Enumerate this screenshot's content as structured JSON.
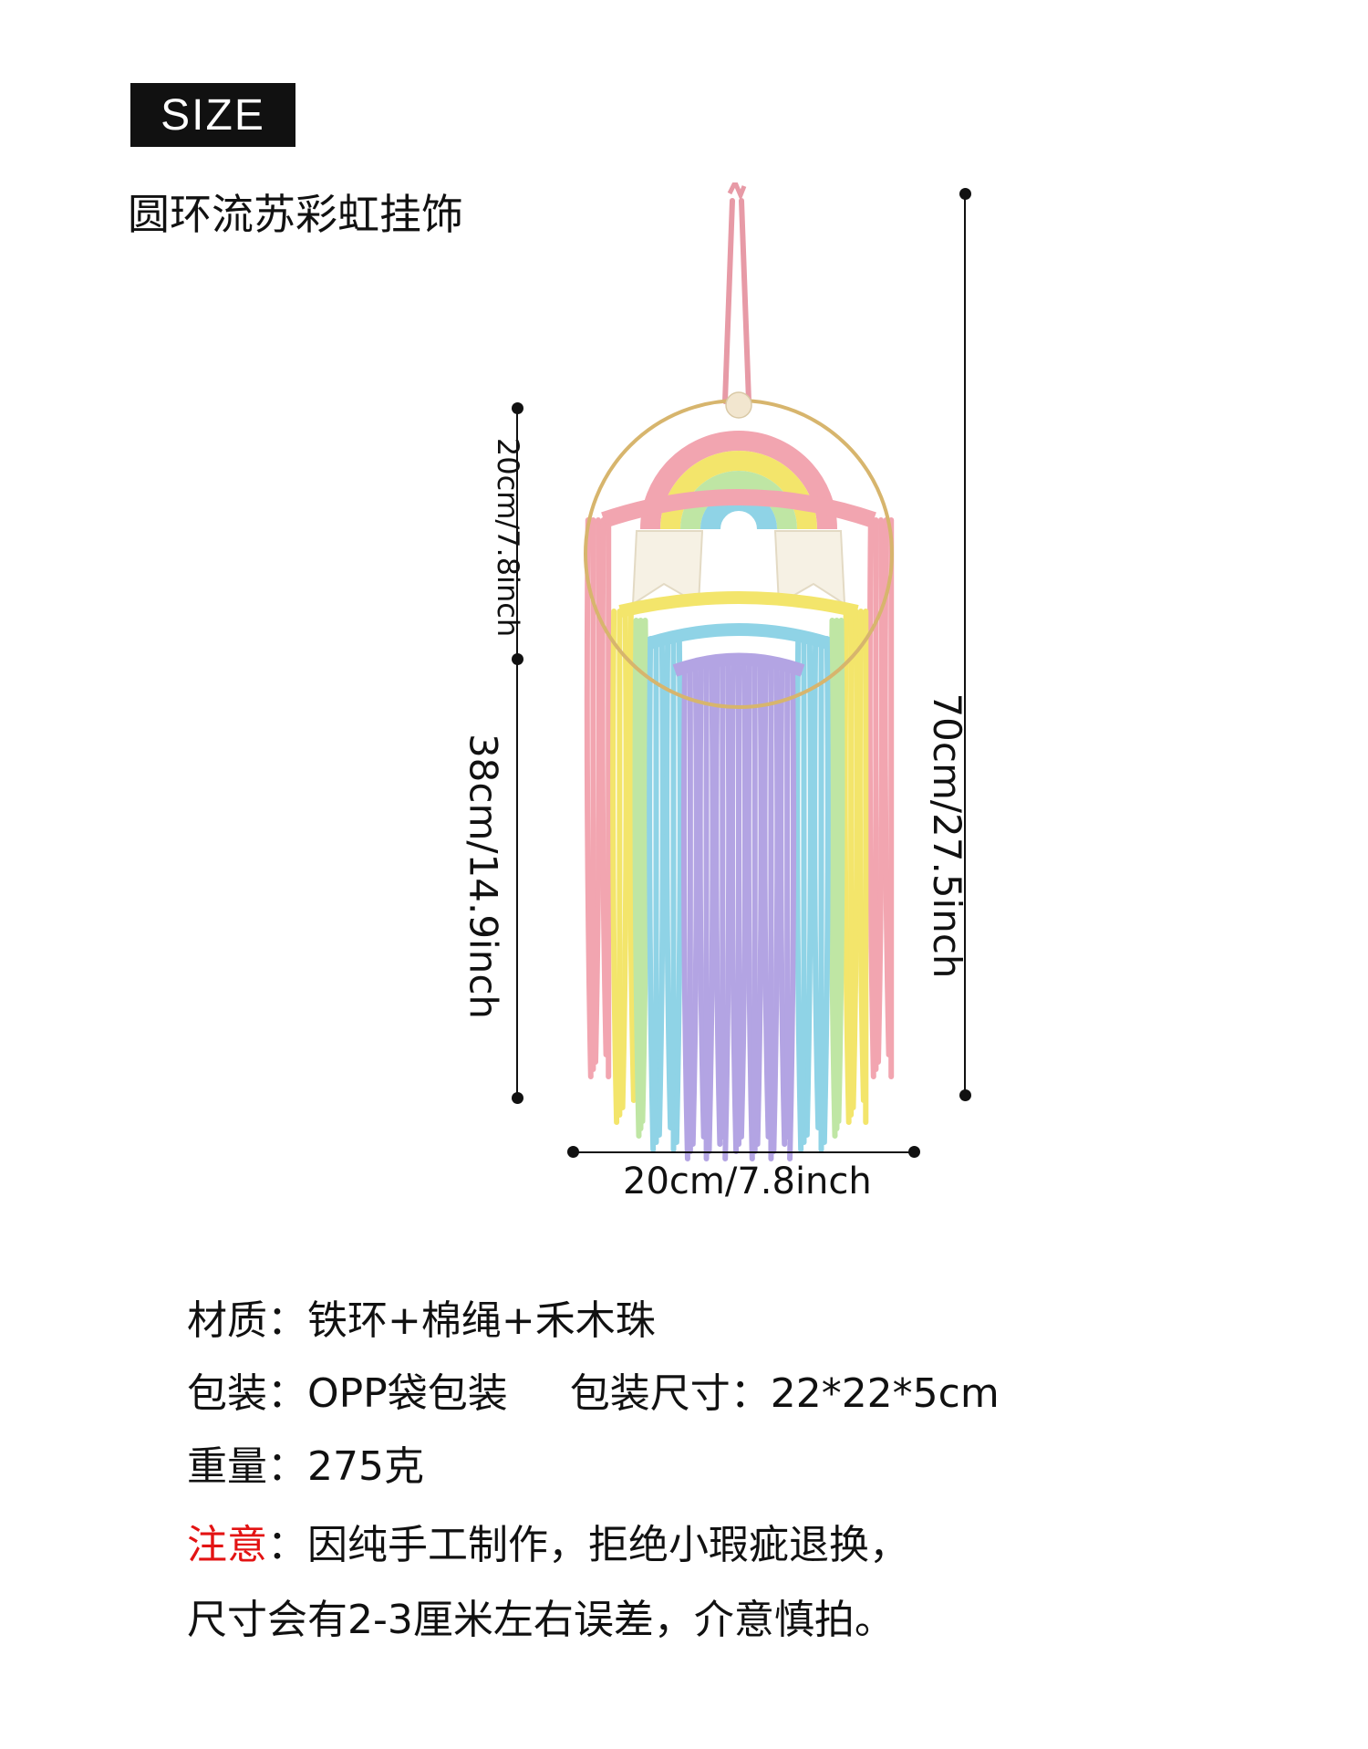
{
  "badge": {
    "label": "SIZE"
  },
  "title": "圆环流苏彩虹挂饰",
  "dimensions": {
    "ring_height": "20cm/7.8inch",
    "tassel_length": "38cm/14.9inch",
    "total_length": "70cm/27.5inch",
    "width": "20cm/7.8inch"
  },
  "specs": {
    "material_label": "材质：",
    "material_value": "铁环+棉绳+禾木珠",
    "packaging_label": "包装：",
    "packaging_value": "OPP袋包装",
    "package_size_label": "包装尺寸：",
    "package_size_value": "22*22*5cm",
    "weight_label": "重量：",
    "weight_value": "275克",
    "note_label": "注意",
    "note_line1": "：因纯手工制作，拒绝小瑕疵退换，",
    "note_line2": "尺寸会有2-3厘米左右误差，介意慎拍。"
  },
  "colors": {
    "ring": "#d7b56d",
    "bead": "#f2e6cf",
    "pink": "#f2a5b0",
    "yellow": "#f3e56b",
    "green": "#bfe6a4",
    "blue": "#8fd3e6",
    "lavender": "#b3a4e3",
    "white_tassel": "#f6f1e4",
    "hanger": "#e79aa6",
    "note_red": "#e31313"
  }
}
